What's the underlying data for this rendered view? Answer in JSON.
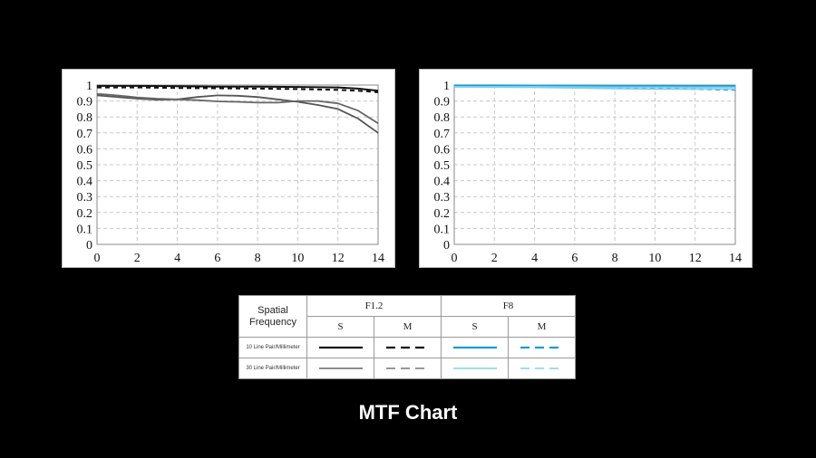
{
  "chart_data": [
    {
      "type": "line",
      "xlim": [
        0,
        14
      ],
      "ylim": [
        0,
        1
      ],
      "x_ticks": [
        0,
        2,
        4,
        6,
        8,
        10,
        12,
        14
      ],
      "y_ticks": [
        0,
        0.1,
        0.2,
        0.3,
        0.4,
        0.5,
        0.6,
        0.7,
        0.8,
        0.9,
        1
      ],
      "y_tick_labels": [
        "0",
        "0.1",
        "0.2",
        "0.3",
        "0.4",
        "0.5",
        "0.6",
        "0.7",
        "0.8",
        "0.9",
        "1"
      ],
      "grid": true,
      "series": [
        {
          "group": "F1.2",
          "orientation": "S",
          "frequency": "10 Line Pair/Millimeter",
          "color": "#111111",
          "width": 2,
          "dash": "",
          "x": [
            0,
            2,
            4,
            6,
            8,
            10,
            12,
            13,
            14
          ],
          "y": [
            0.995,
            0.995,
            0.993,
            0.99,
            0.99,
            0.988,
            0.985,
            0.978,
            0.965
          ]
        },
        {
          "group": "F1.2",
          "orientation": "M",
          "frequency": "10 Line Pair/Millimeter",
          "color": "#111111",
          "width": 2,
          "dash": "5,4",
          "x": [
            0,
            2,
            4,
            6,
            8,
            10,
            12,
            13,
            14
          ],
          "y": [
            0.985,
            0.985,
            0.982,
            0.98,
            0.978,
            0.975,
            0.97,
            0.965,
            0.955
          ]
        },
        {
          "group": "F1.2",
          "orientation": "S",
          "frequency": "30 Line Pair/Millimeter",
          "color": "#555555",
          "width": 1.8,
          "dash": "",
          "x": [
            0,
            1,
            2,
            3,
            4,
            5,
            6,
            7,
            8,
            9,
            10,
            11,
            12,
            13,
            14
          ],
          "y": [
            0.935,
            0.925,
            0.915,
            0.908,
            0.91,
            0.925,
            0.935,
            0.933,
            0.925,
            0.91,
            0.895,
            0.875,
            0.85,
            0.79,
            0.7
          ]
        },
        {
          "group": "F1.2",
          "orientation": "M",
          "frequency": "30 Line Pair/Millimeter",
          "color": "#666666",
          "width": 1.8,
          "dash": "",
          "x": [
            0,
            1,
            2,
            3,
            4,
            5,
            6,
            7,
            8,
            9,
            10,
            11,
            12,
            13,
            14
          ],
          "y": [
            0.945,
            0.935,
            0.922,
            0.915,
            0.91,
            0.905,
            0.898,
            0.895,
            0.89,
            0.89,
            0.9,
            0.9,
            0.885,
            0.84,
            0.76
          ]
        }
      ]
    },
    {
      "type": "line",
      "xlim": [
        0,
        14
      ],
      "ylim": [
        0,
        1
      ],
      "x_ticks": [
        0,
        2,
        4,
        6,
        8,
        10,
        12,
        14
      ],
      "y_ticks": [
        0,
        0.1,
        0.2,
        0.3,
        0.4,
        0.5,
        0.6,
        0.7,
        0.8,
        0.9,
        1
      ],
      "y_tick_labels": [
        "0",
        "0.1",
        "0.2",
        "0.3",
        "0.4",
        "0.5",
        "0.6",
        "0.7",
        "0.8",
        "0.9",
        "1"
      ],
      "grid": true,
      "series": [
        {
          "group": "F8",
          "orientation": "S",
          "frequency": "10 Line Pair/Millimeter",
          "color": "#1a9ad6",
          "width": 2,
          "dash": "",
          "x": [
            0,
            2,
            4,
            6,
            8,
            10,
            12,
            14
          ],
          "y": [
            0.998,
            0.998,
            0.997,
            0.997,
            0.996,
            0.996,
            0.995,
            0.995
          ]
        },
        {
          "group": "F8",
          "orientation": "M",
          "frequency": "10 Line Pair/Millimeter",
          "color": "#1a9ad6",
          "width": 2,
          "dash": "5,4",
          "x": [
            0,
            2,
            4,
            6,
            8,
            10,
            12,
            14
          ],
          "y": [
            0.997,
            0.996,
            0.994,
            0.99,
            0.985,
            0.98,
            0.975,
            0.97
          ]
        },
        {
          "group": "F8",
          "orientation": "S",
          "frequency": "30 Line Pair/Millimeter",
          "color": "#7fd0ef",
          "width": 1.6,
          "dash": "",
          "x": [
            0,
            2,
            4,
            6,
            8,
            10,
            12,
            14
          ],
          "y": [
            0.99,
            0.99,
            0.99,
            0.988,
            0.987,
            0.986,
            0.985,
            0.985
          ]
        },
        {
          "group": "F8",
          "orientation": "M",
          "frequency": "30 Line Pair/Millimeter",
          "color": "#7fd0ef",
          "width": 1.6,
          "dash": "",
          "x": [
            0,
            2,
            4,
            6,
            8,
            10,
            12,
            14
          ],
          "y": [
            0.988,
            0.987,
            0.985,
            0.982,
            0.978,
            0.975,
            0.975,
            0.975
          ]
        }
      ]
    }
  ],
  "legend": {
    "spatial_label_line1": "Spatial",
    "spatial_label_line2": "Frequency",
    "groups": [
      "F1.2",
      "F8"
    ],
    "orientations": [
      "S",
      "M",
      "S",
      "M"
    ],
    "rows": [
      {
        "label": "10 Line Pair/Millimeter",
        "samples": [
          {
            "color": "#111111",
            "dash": "",
            "width": 2.2
          },
          {
            "color": "#111111",
            "dash": "10,6",
            "width": 2.2
          },
          {
            "color": "#1a9ad6",
            "dash": "",
            "width": 2.2
          },
          {
            "color": "#1a9ad6",
            "dash": "10,6",
            "width": 2.2
          }
        ]
      },
      {
        "label": "30 Line Pair/Millimeter",
        "samples": [
          {
            "color": "#666666",
            "dash": "",
            "width": 1.6
          },
          {
            "color": "#777777",
            "dash": "10,6",
            "width": 1.6
          },
          {
            "color": "#7fd0ef",
            "dash": "",
            "width": 1.6
          },
          {
            "color": "#7fd0ef",
            "dash": "10,6",
            "width": 1.6
          }
        ]
      }
    ]
  },
  "caption": "MTF Chart"
}
